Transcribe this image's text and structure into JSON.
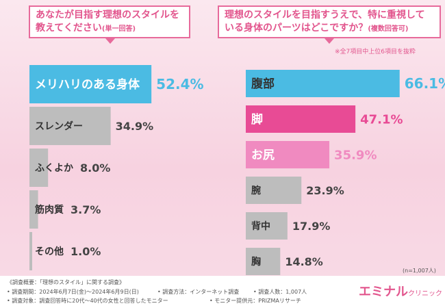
{
  "questions": {
    "left_line1": "あなたが目指す理想のスタイルを",
    "left_line2": "教えてください",
    "left_sub": "(単一回答)",
    "right_line1": "理想のスタイルを目指すうえで、特に重視して",
    "right_line2": "いる身体のパーツはどこですか？",
    "right_sub": "(複数回答可)"
  },
  "note": "※全7項目中上位6項目を抜粋",
  "sample_size": "(n=1,007人)",
  "colors": {
    "highlight_blue": "#4bbbe3",
    "highlight_pink_dark": "#e84b95",
    "highlight_pink_light": "#f08ac0",
    "gray": "#bdbdbd",
    "accent": "#e2558d"
  },
  "chart_data": [
    {
      "type": "bar",
      "orientation": "horizontal",
      "title": "あなたが目指す理想のスタイルを教えてください(単一回答)",
      "categories": [
        "メリハリのある身体",
        "スレンダー",
        "ふくよか",
        "筋肉質",
        "その他"
      ],
      "values": [
        52.4,
        34.9,
        8.0,
        3.7,
        1.0
      ],
      "labels": [
        "52.4%",
        "34.9%",
        "8.0%",
        "3.7%",
        "1.0%"
      ],
      "unit": "%",
      "xlim": [
        0,
        100
      ]
    },
    {
      "type": "bar",
      "orientation": "horizontal",
      "title": "理想のスタイルを目指すうえで、特に重視している身体のパーツはどこですか？(複数回答可)",
      "categories": [
        "腹部",
        "脚",
        "お尻",
        "腕",
        "背中",
        "胸"
      ],
      "values": [
        66.1,
        47.1,
        35.9,
        23.9,
        17.9,
        14.8
      ],
      "labels": [
        "66.1%",
        "47.1%",
        "35.9%",
        "23.9%",
        "17.9%",
        "14.8%"
      ],
      "unit": "%",
      "xlim": [
        0,
        100
      ]
    }
  ],
  "footer": {
    "line1": "《調査概要：「理想のスタイル」に関する調査》",
    "period": "• 調査期間：2024年6月7日(金)～2024年6月9日(日)",
    "method": "• 調査方法：インターネット調査",
    "count": "• 調査人数：1,007人",
    "target": "• 調査対象：調査回答時に20代～40代の女性と回答したモニター",
    "provider": "• モニター提供元：PRIZMAリサーチ"
  },
  "brand": {
    "name": "エミナル",
    "suffix": "クリニック"
  }
}
